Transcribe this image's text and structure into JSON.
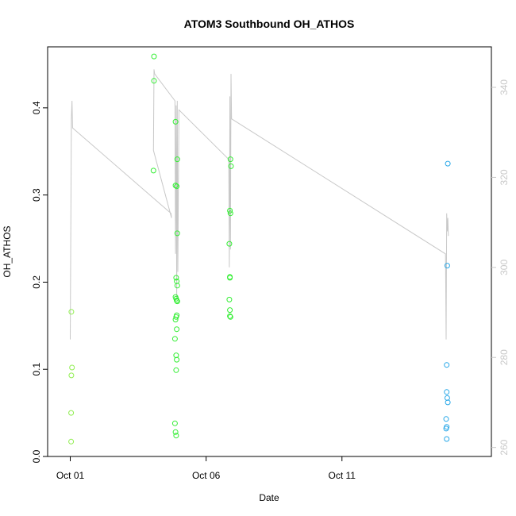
{
  "chart_data": {
    "type": "scatter",
    "title": "ATOM3 Southbound OH_ATHOS",
    "xlabel": "Date",
    "ylabel": "OH_ATHOS",
    "xlim": [
      "2016-09-30T04:00",
      "2016-10-16T12:00"
    ],
    "ylim": [
      0,
      0.47
    ],
    "x_ticks": [
      {
        "label": "Oct 01",
        "date": "2016-10-01T00:00"
      },
      {
        "label": "Oct 06",
        "date": "2016-10-06T00:00"
      },
      {
        "label": "Oct 11",
        "date": "2016-10-11T00:00"
      }
    ],
    "y_ticks": [
      0.0,
      0.1,
      0.2,
      0.3,
      0.4
    ],
    "y2_ticks": [
      260,
      280,
      300,
      320,
      340
    ],
    "y2lim": [
      258,
      349
    ],
    "grid": false,
    "series": [
      {
        "color": "#90ee50",
        "points": [
          {
            "x": "2016-10-01T01:00",
            "y": 0.166
          },
          {
            "x": "2016-10-01T01:30",
            "y": 0.102
          },
          {
            "x": "2016-10-01T01:00",
            "y": 0.093
          },
          {
            "x": "2016-10-01T00:45",
            "y": 0.05
          },
          {
            "x": "2016-10-01T00:45",
            "y": 0.017
          }
        ]
      },
      {
        "color": "#33ee33",
        "points": [
          {
            "x": "2016-10-04T02:00",
            "y": 0.459
          },
          {
            "x": "2016-10-04T02:00",
            "y": 0.431
          },
          {
            "x": "2016-10-04T01:30",
            "y": 0.328
          },
          {
            "x": "2016-10-04T21:00",
            "y": 0.384
          },
          {
            "x": "2016-10-04T22:30",
            "y": 0.341
          },
          {
            "x": "2016-10-04T21:00",
            "y": 0.311
          },
          {
            "x": "2016-10-04T22:00",
            "y": 0.31
          },
          {
            "x": "2016-10-04T22:30",
            "y": 0.256
          },
          {
            "x": "2016-10-04T21:30",
            "y": 0.205
          },
          {
            "x": "2016-10-04T22:00",
            "y": 0.201
          },
          {
            "x": "2016-10-04T22:30",
            "y": 0.196
          },
          {
            "x": "2016-10-04T21:00",
            "y": 0.183
          },
          {
            "x": "2016-10-04T21:30",
            "y": 0.181
          },
          {
            "x": "2016-10-04T22:00",
            "y": 0.179
          },
          {
            "x": "2016-10-04T22:30",
            "y": 0.178
          },
          {
            "x": "2016-10-04T22:00",
            "y": 0.162
          },
          {
            "x": "2016-10-04T21:30",
            "y": 0.16
          },
          {
            "x": "2016-10-04T21:00",
            "y": 0.157
          },
          {
            "x": "2016-10-04T22:00",
            "y": 0.146
          },
          {
            "x": "2016-10-04T20:30",
            "y": 0.135
          },
          {
            "x": "2016-10-04T21:30",
            "y": 0.116
          },
          {
            "x": "2016-10-04T22:00",
            "y": 0.111
          },
          {
            "x": "2016-10-04T21:30",
            "y": 0.099
          },
          {
            "x": "2016-10-04T20:30",
            "y": 0.038
          },
          {
            "x": "2016-10-04T21:00",
            "y": 0.028
          },
          {
            "x": "2016-10-04T21:30",
            "y": 0.024
          },
          {
            "x": "2016-10-06T21:30",
            "y": 0.341
          },
          {
            "x": "2016-10-06T22:00",
            "y": 0.333
          },
          {
            "x": "2016-10-06T21:00",
            "y": 0.282
          },
          {
            "x": "2016-10-06T21:30",
            "y": 0.279
          },
          {
            "x": "2016-10-06T20:30",
            "y": 0.244
          },
          {
            "x": "2016-10-06T21:00",
            "y": 0.206
          },
          {
            "x": "2016-10-06T21:00",
            "y": 0.205
          },
          {
            "x": "2016-10-06T20:30",
            "y": 0.18
          },
          {
            "x": "2016-10-06T21:00",
            "y": 0.168
          },
          {
            "x": "2016-10-06T21:00",
            "y": 0.161
          },
          {
            "x": "2016-10-06T21:30",
            "y": 0.16
          }
        ]
      },
      {
        "color": "#29a8e8",
        "points": [
          {
            "x": "2016-10-14T21:30",
            "y": 0.336
          },
          {
            "x": "2016-10-14T21:00",
            "y": 0.219
          },
          {
            "x": "2016-10-14T20:30",
            "y": 0.105
          },
          {
            "x": "2016-10-14T20:30",
            "y": 0.074
          },
          {
            "x": "2016-10-14T21:00",
            "y": 0.067
          },
          {
            "x": "2016-10-14T21:30",
            "y": 0.062
          },
          {
            "x": "2016-10-14T20:00",
            "y": 0.043
          },
          {
            "x": "2016-10-14T20:30",
            "y": 0.034
          },
          {
            "x": "2016-10-14T20:00",
            "y": 0.032
          },
          {
            "x": "2016-10-14T20:30",
            "y": 0.02
          }
        ]
      }
    ],
    "secondary_line": {
      "color": "#c8c8c8",
      "axis": "right",
      "points": [
        {
          "x": "2016-10-01T00:00",
          "y": 284
        },
        {
          "x": "2016-10-01T01:00",
          "y": 333
        },
        {
          "x": "2016-10-01T01:30",
          "y": 337
        },
        {
          "x": "2016-10-01T02:00",
          "y": 331
        },
        {
          "x": "2016-10-04T17:00",
          "y": 312
        },
        {
          "x": "2016-10-04T17:30",
          "y": 311
        },
        {
          "x": "2016-10-04T01:30",
          "y": 326
        },
        {
          "x": "2016-10-04T02:00",
          "y": 344
        },
        {
          "x": "2016-10-04T02:30",
          "y": 343
        },
        {
          "x": "2016-10-04T20:30",
          "y": 337
        },
        {
          "x": "2016-10-04T21:00",
          "y": 303
        },
        {
          "x": "2016-10-04T21:30",
          "y": 336
        },
        {
          "x": "2016-10-04T22:00",
          "y": 293
        },
        {
          "x": "2016-10-04T22:30",
          "y": 337
        },
        {
          "x": "2016-10-04T23:00",
          "y": 299
        },
        {
          "x": "2016-10-05T00:00",
          "y": 335
        },
        {
          "x": "2016-10-06T20:00",
          "y": 324
        },
        {
          "x": "2016-10-06T20:30",
          "y": 300
        },
        {
          "x": "2016-10-06T21:00",
          "y": 338
        },
        {
          "x": "2016-10-06T21:30",
          "y": 304
        },
        {
          "x": "2016-10-06T22:00",
          "y": 343
        },
        {
          "x": "2016-10-06T22:30",
          "y": 333
        },
        {
          "x": "2016-10-14T19:30",
          "y": 303
        },
        {
          "x": "2016-10-14T20:00",
          "y": 284
        },
        {
          "x": "2016-10-14T20:30",
          "y": 312
        },
        {
          "x": "2016-10-14T21:00",
          "y": 308
        },
        {
          "x": "2016-10-14T21:30",
          "y": 311
        },
        {
          "x": "2016-10-14T22:00",
          "y": 307
        }
      ]
    }
  }
}
